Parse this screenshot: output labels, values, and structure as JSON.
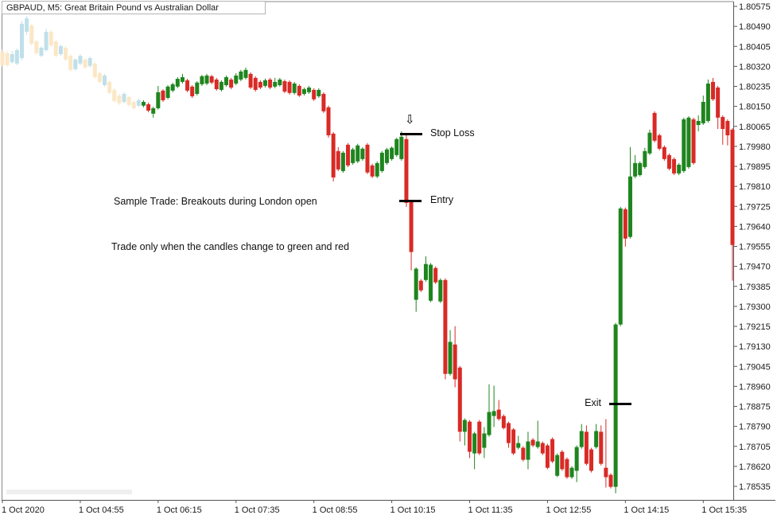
{
  "window": {
    "title": "GBPAUD, M5:  Great Britain Pound vs Australian Dollar"
  },
  "annotations": {
    "arrow_icon": "⇩",
    "stop_loss_label": "Stop Loss",
    "entry_label": "Entry",
    "exit_label": "Exit",
    "note1": "Sample Trade: Breakouts during London open",
    "note2": "Trade only when the candles change to green and red",
    "stop_loss_price": 1.80034,
    "entry_price": 1.7975,
    "exit_price": 1.78888
  },
  "colors": {
    "bull": "#1e851e",
    "bear": "#d92a26",
    "faded_bull": "#bfe0ea",
    "faded_bear": "#fbe7c6",
    "axis_line": "#888888",
    "axis_text": "#1a1a1a",
    "level_line": "#000000"
  },
  "chart_data": {
    "type": "candlestick",
    "symbol": "GBPAUD",
    "timeframe": "M5",
    "title": "GBPAUD, M5:  Great Britain Pound vs Australian Dollar",
    "y_axis": {
      "max": 1.80575,
      "min": 1.78535,
      "step": 0.00085,
      "labels": [
        "1.80575",
        "1.80490",
        "1.80405",
        "1.80320",
        "1.80235",
        "1.80150",
        "1.80065",
        "1.79980",
        "1.79895",
        "1.79810",
        "1.79725",
        "1.79640",
        "1.79555",
        "1.79470",
        "1.79385",
        "1.79300",
        "1.79215",
        "1.79130",
        "1.79045",
        "1.78960",
        "1.78875",
        "1.78790",
        "1.78705",
        "1.78620",
        "1.78535"
      ]
    },
    "x_axis": {
      "labels": [
        "1 Oct 2020",
        "1 Oct 04:55",
        "1 Oct 06:15",
        "1 Oct 07:35",
        "1 Oct 08:55",
        "1 Oct 10:15",
        "1 Oct 11:35",
        "1 Oct 12:55",
        "1 Oct 14:15",
        "1 Oct 15:35"
      ],
      "bars_per_label": 16
    },
    "faded_candle_count": 29,
    "candles": [
      [
        1.80382,
        1.80392,
        1.80318,
        1.80325
      ],
      [
        1.80376,
        1.80386,
        1.80318,
        1.80325
      ],
      [
        1.80338,
        1.80386,
        1.80332,
        1.80372
      ],
      [
        1.80332,
        1.80396,
        1.80325,
        1.80389
      ],
      [
        1.80355,
        1.80514,
        1.80345,
        1.80501
      ],
      [
        1.80467,
        1.80534,
        1.80453,
        1.80524
      ],
      [
        1.80494,
        1.80501,
        1.80409,
        1.80416
      ],
      [
        1.80426,
        1.80433,
        1.80369,
        1.80376
      ],
      [
        1.80365,
        1.80406,
        1.80359,
        1.80399
      ],
      [
        1.80389,
        1.8048,
        1.80382,
        1.80467
      ],
      [
        1.80467,
        1.80474,
        1.80402,
        1.80409
      ],
      [
        1.80426,
        1.80433,
        1.80359,
        1.80365
      ],
      [
        1.80372,
        1.80412,
        1.80365,
        1.80406
      ],
      [
        1.80399,
        1.80406,
        1.80342,
        1.80349
      ],
      [
        1.80365,
        1.80372,
        1.80298,
        1.80305
      ],
      [
        1.80308,
        1.80355,
        1.80301,
        1.80349
      ],
      [
        1.80332,
        1.80372,
        1.80325,
        1.80365
      ],
      [
        1.80349,
        1.80355,
        1.80308,
        1.80315
      ],
      [
        1.80322,
        1.80362,
        1.80315,
        1.80355
      ],
      [
        1.80332,
        1.80338,
        1.80267,
        1.80274
      ],
      [
        1.80291,
        1.80298,
        1.80247,
        1.80254
      ],
      [
        1.8024,
        1.80288,
        1.80234,
        1.80281
      ],
      [
        1.80254,
        1.80261,
        1.802,
        1.80207
      ],
      [
        1.8022,
        1.80227,
        1.80166,
        1.80173
      ],
      [
        1.80196,
        1.80203,
        1.80156,
        1.80163
      ],
      [
        1.80169,
        1.8021,
        1.80163,
        1.80203
      ],
      [
        1.8019,
        1.80196,
        1.80149,
        1.80156
      ],
      [
        1.80169,
        1.80176,
        1.80136,
        1.80142
      ],
      [
        1.80153,
        1.80183,
        1.80146,
        1.80176
      ],
      [
        1.80153,
        1.80176,
        1.80146,
        1.80169
      ],
      [
        1.80159,
        1.80166,
        1.80125,
        1.80132
      ],
      [
        1.80119,
        1.80149,
        1.80102,
        1.80142
      ],
      [
        1.80142,
        1.80237,
        1.80136,
        1.8021
      ],
      [
        1.80217,
        1.80223,
        1.80169,
        1.80176
      ],
      [
        1.80186,
        1.8024,
        1.8018,
        1.80234
      ],
      [
        1.80217,
        1.80251,
        1.8021,
        1.80244
      ],
      [
        1.80234,
        1.80274,
        1.80227,
        1.80267
      ],
      [
        1.80254,
        1.80288,
        1.80247,
        1.80274
      ],
      [
        1.80261,
        1.80267,
        1.8021,
        1.80217
      ],
      [
        1.80234,
        1.8024,
        1.80186,
        1.80193
      ],
      [
        1.80203,
        1.80257,
        1.80196,
        1.80251
      ],
      [
        1.80244,
        1.80284,
        1.80237,
        1.80278
      ],
      [
        1.80247,
        1.80288,
        1.8024,
        1.80281
      ],
      [
        1.80278,
        1.80284,
        1.80244,
        1.80251
      ],
      [
        1.80264,
        1.80271,
        1.80217,
        1.80223
      ],
      [
        1.8022,
        1.80261,
        1.80213,
        1.80254
      ],
      [
        1.8024,
        1.80281,
        1.80234,
        1.80274
      ],
      [
        1.80264,
        1.80271,
        1.80223,
        1.8023
      ],
      [
        1.80247,
        1.80291,
        1.8024,
        1.80281
      ],
      [
        1.80264,
        1.80305,
        1.80257,
        1.80298
      ],
      [
        1.80271,
        1.80315,
        1.80264,
        1.80305
      ],
      [
        1.80288,
        1.80295,
        1.80223,
        1.8023
      ],
      [
        1.80271,
        1.80278,
        1.80213,
        1.8022
      ],
      [
        1.80254,
        1.80261,
        1.80223,
        1.8023
      ],
      [
        1.80237,
        1.80268,
        1.8023,
        1.80261
      ],
      [
        1.80264,
        1.80271,
        1.80223,
        1.8023
      ],
      [
        1.80234,
        1.80271,
        1.80227,
        1.80254
      ],
      [
        1.8024,
        1.80271,
        1.80234,
        1.80264
      ],
      [
        1.80257,
        1.80264,
        1.80206,
        1.80213
      ],
      [
        1.80254,
        1.80261,
        1.802,
        1.80207
      ],
      [
        1.80207,
        1.80254,
        1.802,
        1.80247
      ],
      [
        1.80237,
        1.80244,
        1.8019,
        1.80196
      ],
      [
        1.80203,
        1.8023,
        1.80196,
        1.80223
      ],
      [
        1.8021,
        1.80237,
        1.80203,
        1.8023
      ],
      [
        1.8022,
        1.80227,
        1.80173,
        1.8018
      ],
      [
        1.80193,
        1.80227,
        1.80186,
        1.8022
      ],
      [
        1.80203,
        1.8021,
        1.80122,
        1.80129
      ],
      [
        1.80146,
        1.80153,
        1.80017,
        1.80027
      ],
      [
        1.80034,
        1.80041,
        1.79831,
        1.79848
      ],
      [
        1.7996,
        1.79977,
        1.79875,
        1.79882
      ],
      [
        1.79875,
        1.7996,
        1.79868,
        1.79953
      ],
      [
        1.79987,
        1.79994,
        1.79892,
        1.79899
      ],
      [
        1.79909,
        1.79974,
        1.79902,
        1.79967
      ],
      [
        1.79916,
        1.79991,
        1.79909,
        1.79984
      ],
      [
        1.79926,
        1.79977,
        1.79919,
        1.7997
      ],
      [
        1.79987,
        1.79994,
        1.79862,
        1.79869
      ],
      [
        1.79899,
        1.79906,
        1.79845,
        1.79852
      ],
      [
        1.79852,
        1.79916,
        1.79845,
        1.79909
      ],
      [
        1.79875,
        1.7996,
        1.79868,
        1.79953
      ],
      [
        1.79909,
        1.79974,
        1.79902,
        1.79967
      ],
      [
        1.79926,
        1.7998,
        1.79919,
        1.79974
      ],
      [
        1.79943,
        1.80017,
        1.79936,
        1.80011
      ],
      [
        1.79926,
        1.80044,
        1.79919,
        1.80021
      ],
      [
        1.80011,
        1.80027,
        1.79723,
        1.7974
      ],
      [
        1.79747,
        1.79753,
        1.79453,
        1.79531
      ],
      [
        1.79328,
        1.79466,
        1.79277,
        1.7946
      ],
      [
        1.79409,
        1.79416,
        1.79361,
        1.79368
      ],
      [
        1.79412,
        1.79513,
        1.79405,
        1.7948
      ],
      [
        1.79324,
        1.79484,
        1.79318,
        1.79477
      ],
      [
        1.79463,
        1.7947,
        1.79395,
        1.79402
      ],
      [
        1.79321,
        1.79419,
        1.79314,
        1.79412
      ],
      [
        1.79412,
        1.79419,
        1.7899,
        1.79013
      ],
      [
        1.79013,
        1.79199,
        1.79006,
        1.79149
      ],
      [
        1.79138,
        1.79216,
        1.78956,
        1.7899
      ],
      [
        1.7904,
        1.79047,
        1.78726,
        1.78767
      ],
      [
        1.78767,
        1.78824,
        1.78709,
        1.78817
      ],
      [
        1.7881,
        1.78817,
        1.78655,
        1.78682
      ],
      [
        1.78675,
        1.78767,
        1.78608,
        1.7876
      ],
      [
        1.7881,
        1.78817,
        1.78668,
        1.78675
      ],
      [
        1.78699,
        1.78787,
        1.78655,
        1.7876
      ],
      [
        1.78753,
        1.78969,
        1.78746,
        1.78851
      ],
      [
        1.78834,
        1.78963,
        1.78787,
        1.78855
      ],
      [
        1.78861,
        1.78902,
        1.78814,
        1.78821
      ],
      [
        1.78834,
        1.78841,
        1.78777,
        1.78783
      ],
      [
        1.78804,
        1.7881,
        1.78699,
        1.78719
      ],
      [
        1.78777,
        1.78783,
        1.78668,
        1.78675
      ],
      [
        1.78699,
        1.7875,
        1.78692,
        1.78719
      ],
      [
        1.78699,
        1.78706,
        1.78641,
        1.78648
      ],
      [
        1.78648,
        1.78767,
        1.78608,
        1.78726
      ],
      [
        1.78733,
        1.7874,
        1.78702,
        1.78709
      ],
      [
        1.78702,
        1.78814,
        1.78695,
        1.78726
      ],
      [
        1.78719,
        1.78726,
        1.78668,
        1.78675
      ],
      [
        1.78709,
        1.78716,
        1.78608,
        1.78614
      ],
      [
        1.78736,
        1.78743,
        1.78634,
        1.78641
      ],
      [
        1.7858,
        1.78675,
        1.78574,
        1.78668
      ],
      [
        1.78682,
        1.78689,
        1.78601,
        1.78608
      ],
      [
        1.78651,
        1.78658,
        1.78567,
        1.78574
      ],
      [
        1.78574,
        1.78621,
        1.78567,
        1.78614
      ],
      [
        1.78601,
        1.78709,
        1.78553,
        1.78702
      ],
      [
        1.78702,
        1.788,
        1.78695,
        1.7877
      ],
      [
        1.78767,
        1.78794,
        1.78624,
        1.78631
      ],
      [
        1.78692,
        1.78699,
        1.78594,
        1.78601
      ],
      [
        1.78702,
        1.788,
        1.78695,
        1.7877
      ],
      [
        1.78767,
        1.78794,
        1.78624,
        1.78631
      ],
      [
        1.78614,
        1.78821,
        1.7853,
        1.78574
      ],
      [
        1.78584,
        1.78591,
        1.78526,
        1.78533
      ],
      [
        1.78533,
        1.7923,
        1.78506,
        1.79223
      ],
      [
        1.79223,
        1.79723,
        1.79216,
        1.79716
      ],
      [
        1.79713,
        1.7972,
        1.79554,
        1.79588
      ],
      [
        1.79595,
        1.79977,
        1.79588,
        1.79852
      ],
      [
        1.79852,
        1.79943,
        1.79845,
        1.79909
      ],
      [
        1.79858,
        1.79916,
        1.79852,
        1.79909
      ],
      [
        1.79892,
        1.79974,
        1.79885,
        1.7996
      ],
      [
        1.7995,
        1.80051,
        1.79943,
        1.80038
      ],
      [
        1.80122,
        1.80129,
        1.79997,
        1.80004
      ],
      [
        1.80027,
        1.80034,
        1.79963,
        1.7997
      ],
      [
        1.79977,
        1.79984,
        1.79919,
        1.79926
      ],
      [
        1.79943,
        1.7995,
        1.79878,
        1.79885
      ],
      [
        1.79926,
        1.79933,
        1.79858,
        1.79865
      ],
      [
        1.79865,
        1.79909,
        1.79858,
        1.79902
      ],
      [
        1.79875,
        1.80102,
        1.79868,
        1.80095
      ],
      [
        1.79892,
        1.80108,
        1.79885,
        1.80102
      ],
      [
        1.80095,
        1.80102,
        1.79902,
        1.79909
      ],
      [
        1.80071,
        1.80112,
        1.80044,
        1.80088
      ],
      [
        1.80078,
        1.80196,
        1.80071,
        1.80169
      ],
      [
        1.80088,
        1.80264,
        1.80081,
        1.80247
      ],
      [
        1.80254,
        1.80271,
        1.80173,
        1.8018
      ],
      [
        1.8023,
        1.80237,
        1.80054,
        1.80102
      ],
      [
        1.80105,
        1.80112,
        1.79987,
        1.80054
      ],
      [
        1.80088,
        1.80095,
        1.79984,
        1.80027
      ],
      [
        1.80051,
        1.80058,
        1.79409,
        1.79561
      ]
    ]
  }
}
